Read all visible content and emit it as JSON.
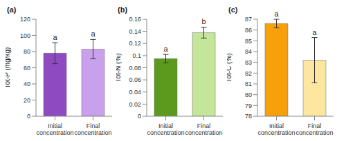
{
  "chart_data": [
    {
      "type": "bar",
      "title": "(a)",
      "y_label": "Tot-P (mg/kg)",
      "categories": [
        "Initial concentration",
        "Final concentration"
      ],
      "values": [
        78,
        83
      ],
      "errors": [
        13,
        12
      ],
      "annotations": [
        "a",
        "a"
      ],
      "colors": [
        "#8e4ac0",
        "#c9a0ec"
      ],
      "ylim": [
        0,
        120
      ],
      "yticks": [
        0,
        20,
        40,
        60,
        80,
        100,
        120
      ],
      "grid": false
    },
    {
      "type": "bar",
      "title": "(b)",
      "y_label": "Tot-N (%)",
      "categories": [
        "Initial concentration",
        "Final concentration"
      ],
      "values": [
        0.095,
        0.138
      ],
      "errors": [
        0.007,
        0.009
      ],
      "annotations": [
        "a",
        "b"
      ],
      "colors": [
        "#5c9a1e",
        "#c3e69a"
      ],
      "ylim": [
        0,
        0.16
      ],
      "yticks": [
        0,
        0.02,
        0.04,
        0.06,
        0.08,
        0.1,
        0.12,
        0.14,
        0.16
      ],
      "grid": false
    },
    {
      "type": "bar",
      "title": "(c)",
      "y_label": "Tot-C (%)",
      "categories": [
        "Initial concentration",
        "Final concentration"
      ],
      "values": [
        86.6,
        83.2
      ],
      "errors": [
        0.4,
        2.1
      ],
      "annotations": [
        "a",
        "a"
      ],
      "colors": [
        "#f7a00a",
        "#fde7a0"
      ],
      "ylim": [
        78,
        87
      ],
      "yticks": [
        78,
        79,
        80,
        81,
        82,
        83,
        84,
        85,
        86,
        87
      ],
      "grid": false
    }
  ]
}
